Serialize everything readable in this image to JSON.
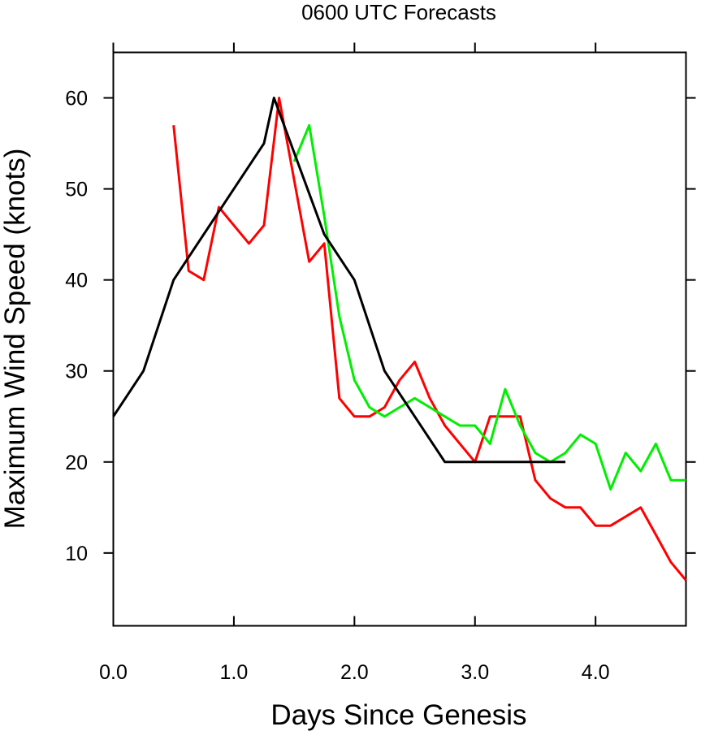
{
  "chart_data": {
    "type": "line",
    "title": "0600 UTC Forecasts",
    "xlabel": "Days Since Genesis",
    "ylabel": "Maximum Wind Speed (knots)",
    "xlim": [
      0,
      4.75
    ],
    "ylim": [
      2,
      65
    ],
    "x_ticks": [
      0,
      1,
      2,
      3,
      4
    ],
    "x_tick_labels": [
      "0.0",
      "1.0",
      "2.0",
      "3.0",
      "4.0"
    ],
    "y_ticks": [
      10,
      20,
      30,
      40,
      50,
      60
    ],
    "y_tick_labels": [
      "10",
      "20",
      "30",
      "40",
      "50",
      "60"
    ],
    "grid": false,
    "legend": "none",
    "series": [
      {
        "color": "#000000",
        "x": [
          0,
          0.25,
          0.5,
          0.75,
          1.0,
          1.25,
          1.333,
          1.5,
          1.75,
          2.0,
          2.25,
          2.5,
          2.75,
          3.0,
          3.25,
          3.5,
          3.75
        ],
        "y": [
          25,
          30,
          40,
          45,
          50,
          55,
          60,
          54,
          45,
          40,
          30,
          25,
          20,
          20,
          20,
          20,
          20
        ]
      },
      {
        "color": "#ff0000",
        "x": [
          0.5,
          0.625,
          0.75,
          0.875,
          1.0,
          1.125,
          1.25,
          1.375,
          1.5,
          1.625,
          1.75,
          1.875,
          2.0,
          2.125,
          2.25,
          2.375,
          2.5,
          2.625,
          2.75,
          2.875,
          3.0,
          3.125,
          3.25,
          3.375,
          3.5,
          3.625,
          3.75,
          3.875,
          4.0,
          4.125,
          4.25,
          4.375,
          4.5,
          4.625,
          4.75
        ],
        "y": [
          57,
          41,
          40,
          48,
          46,
          44,
          46,
          60,
          51,
          42,
          44,
          27,
          25,
          25,
          26,
          29,
          31,
          27,
          24,
          22,
          20,
          25,
          25,
          25,
          18,
          16,
          15,
          15,
          13,
          13,
          14,
          15,
          12,
          9,
          7
        ]
      },
      {
        "color": "#00ee00",
        "x": [
          1.5,
          1.625,
          1.75,
          1.875,
          2.0,
          2.125,
          2.25,
          2.375,
          2.5,
          2.625,
          2.75,
          2.875,
          3.0,
          3.125,
          3.25,
          3.375,
          3.5,
          3.625,
          3.75,
          3.875,
          4.0,
          4.125,
          4.25,
          4.375,
          4.5,
          4.625,
          4.75
        ],
        "y": [
          53,
          57,
          47,
          36,
          29,
          26,
          25,
          26,
          27,
          26,
          25,
          24,
          24,
          22,
          28,
          24,
          21,
          20,
          21,
          23,
          22,
          17,
          21,
          19,
          22,
          18,
          18
        ]
      }
    ]
  }
}
